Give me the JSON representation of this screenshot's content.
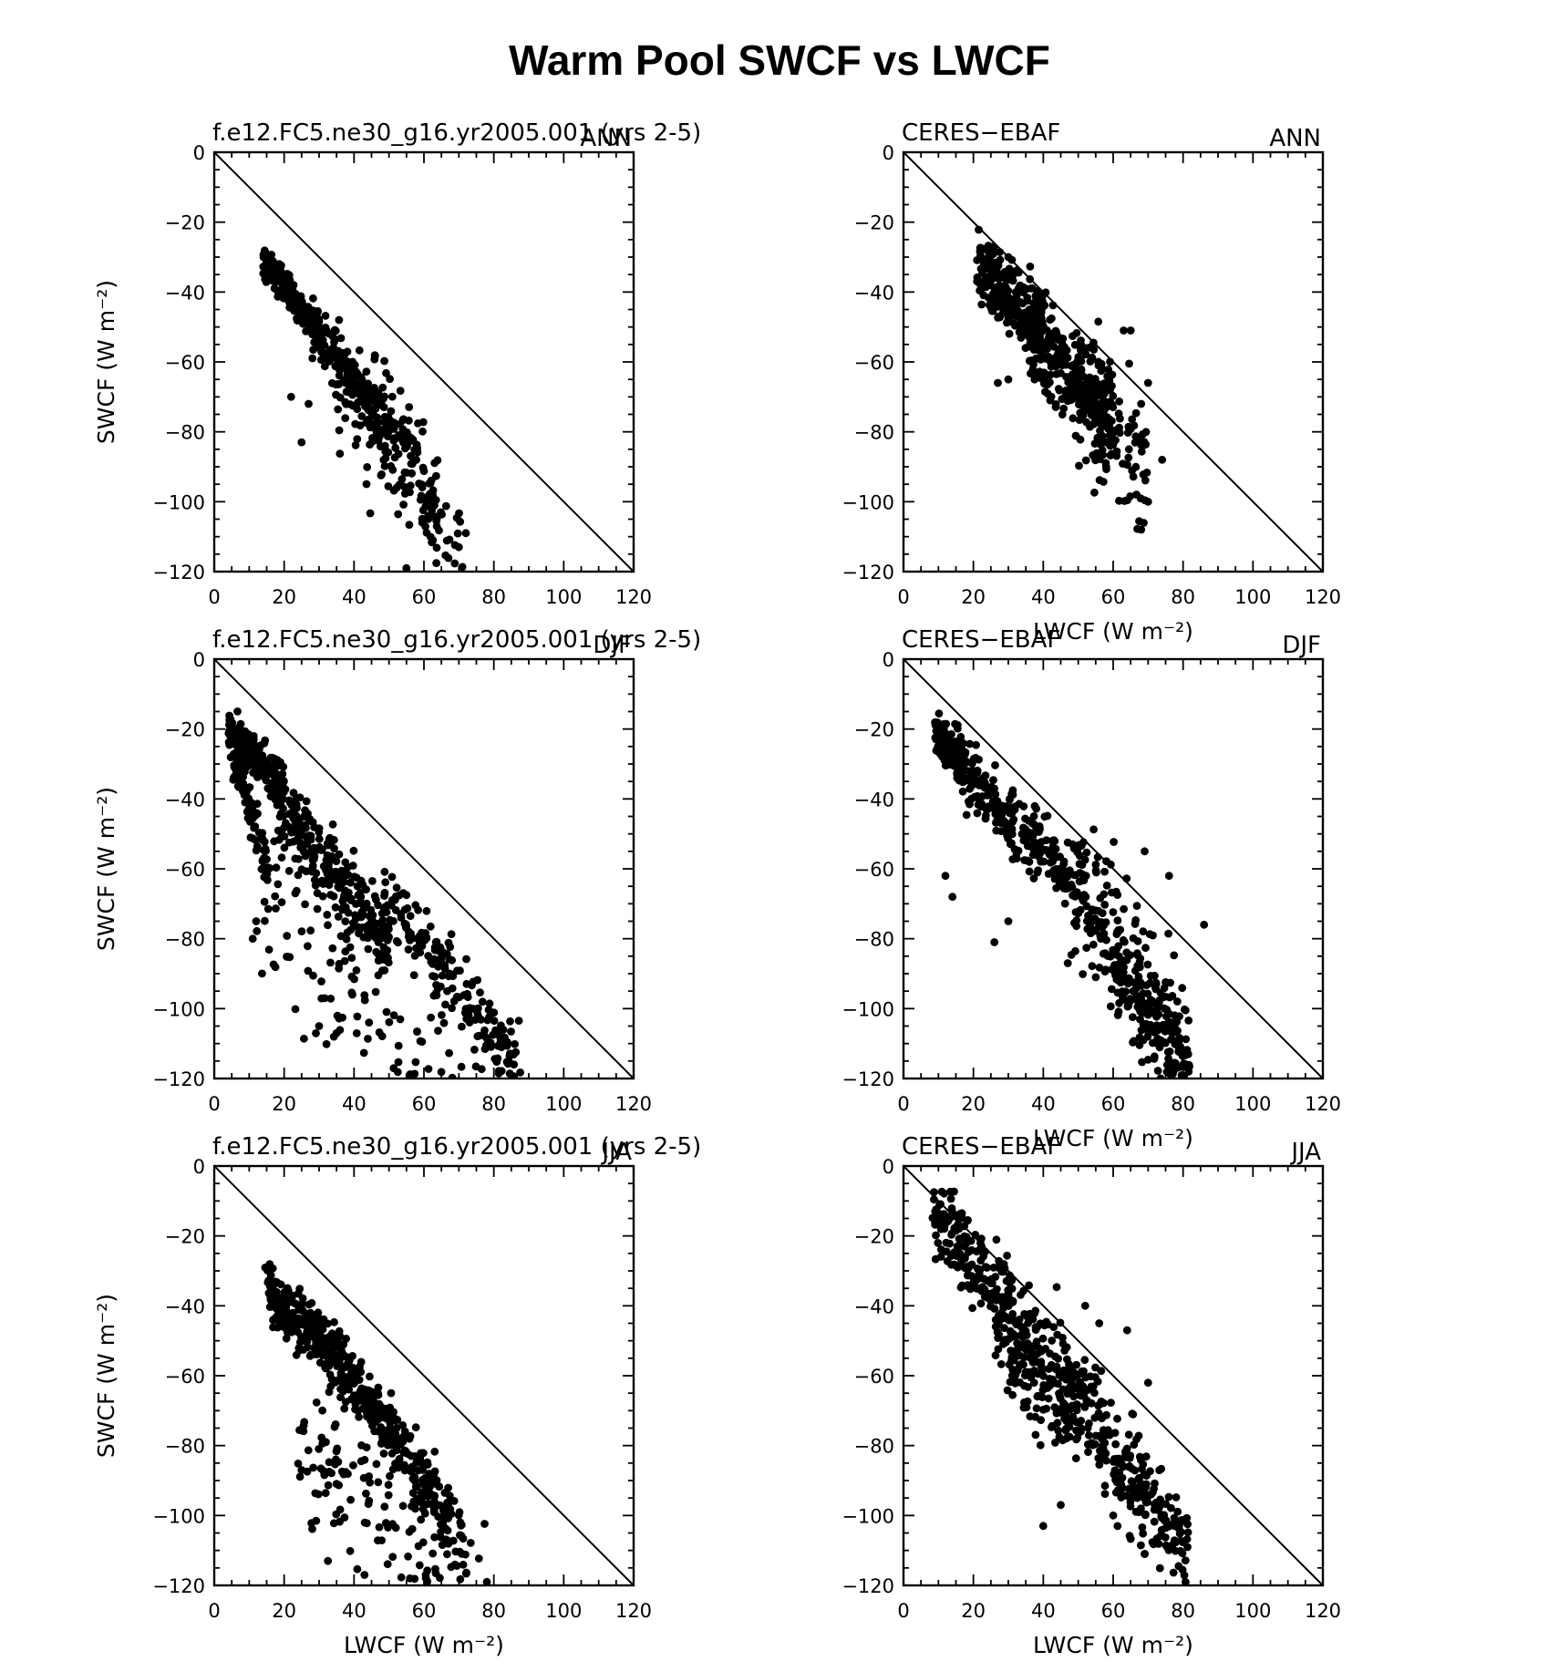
{
  "figure": {
    "title": "Warm Pool SWCF vs LWCF"
  },
  "chart_data": [
    {
      "type": "scatter",
      "run_label": "f.e12.FC5.ne30_g16.yr2005.001 (yrs 2-5)",
      "season": "ANN",
      "xlabel": "",
      "ylabel": "SWCF (W m⁻²)",
      "xlim": [
        0,
        120
      ],
      "ylim": [
        -120,
        0
      ],
      "x_ticks": [
        "0",
        "20",
        "40",
        "60",
        "80",
        "100",
        "120"
      ],
      "y_ticks": [
        "0",
        "−20",
        "−40",
        "−60",
        "−80",
        "−100",
        "−120"
      ],
      "reference_line": "y = -x",
      "point_cloud": [
        {
          "x": [
            14,
            30
          ],
          "slope": -1.25,
          "intercept": -13.5,
          "spread": 2.2,
          "n": 240
        },
        {
          "x": [
            28,
            50
          ],
          "slope": -1.4,
          "intercept": -10,
          "spread": 4.5,
          "n": 170
        },
        {
          "x": [
            44,
            64
          ],
          "slope": -1.5,
          "intercept": -4,
          "spread": 7,
          "n": 110
        },
        {
          "x": [
            34,
            72
          ],
          "slope": -1.35,
          "intercept": -22,
          "spread": 10,
          "n": 70
        }
      ],
      "outliers": [
        {
          "x": 25,
          "y": -83
        },
        {
          "x": 27,
          "y": -72
        },
        {
          "x": 22,
          "y": -70
        },
        {
          "x": 72,
          "y": -109
        },
        {
          "x": 55,
          "y": -119
        },
        {
          "x": 70,
          "y": -113
        }
      ]
    },
    {
      "type": "scatter",
      "run_label": "CERES−EBAF",
      "season": "ANN",
      "xlabel": "LWCF (W m⁻²)",
      "ylabel": "",
      "xlim": [
        0,
        120
      ],
      "ylim": [
        -120,
        0
      ],
      "x_ticks": [
        "0",
        "20",
        "40",
        "60",
        "80",
        "100",
        "120"
      ],
      "y_ticks": [
        "0",
        "−20",
        "−40",
        "−60",
        "−80",
        "−100",
        "−120"
      ],
      "reference_line": "y = -x",
      "point_cloud": [
        {
          "x": [
            21,
            40
          ],
          "slope": -0.9,
          "intercept": -14,
          "spread": 4.5,
          "n": 260
        },
        {
          "x": [
            36,
            60
          ],
          "slope": -1.05,
          "intercept": -13,
          "spread": 8,
          "n": 260
        },
        {
          "x": [
            50,
            70
          ],
          "slope": -1.2,
          "intercept": -8,
          "spread": 9,
          "n": 110
        }
      ],
      "outliers": [
        {
          "x": 30,
          "y": -30
        },
        {
          "x": 68,
          "y": -108
        },
        {
          "x": 70,
          "y": -100
        },
        {
          "x": 74,
          "y": -88
        },
        {
          "x": 70,
          "y": -66
        },
        {
          "x": 68,
          "y": -72
        },
        {
          "x": 63,
          "y": -51
        },
        {
          "x": 65,
          "y": -51
        },
        {
          "x": 38,
          "y": -42
        },
        {
          "x": 27,
          "y": -66
        },
        {
          "x": 30,
          "y": -65
        }
      ]
    },
    {
      "type": "scatter",
      "run_label": "f.e12.FC5.ne30_g16.yr2005.001 (yrs 2-5)",
      "season": "DJF",
      "xlabel": "",
      "ylabel": "SWCF (W m⁻²)",
      "xlim": [
        0,
        120
      ],
      "ylim": [
        -120,
        0
      ],
      "x_ticks": [
        "0",
        "20",
        "40",
        "60",
        "80",
        "100",
        "120"
      ],
      "y_ticks": [
        "0",
        "−20",
        "−40",
        "−60",
        "−80",
        "−100",
        "−120"
      ],
      "reference_line": "y = -x",
      "point_cloud": [
        {
          "x": [
            4,
            20
          ],
          "slope": -1.0,
          "intercept": -16,
          "spread": 3,
          "n": 170
        },
        {
          "x": [
            4,
            16
          ],
          "slope": -3.2,
          "intercept": -10,
          "spread": 4,
          "n": 90
        },
        {
          "x": [
            18,
            50
          ],
          "slope": -1.28,
          "intercept": -18,
          "spread": 5,
          "n": 260
        },
        {
          "x": [
            48,
            88
          ],
          "slope": -1.3,
          "intercept": -4,
          "spread": 6,
          "n": 190
        },
        {
          "x": [
            12,
            72
          ],
          "slope": -1.0,
          "intercept": -55,
          "spread": 13,
          "n": 130
        }
      ],
      "outliers": [
        {
          "x": 35,
          "y": -107
        },
        {
          "x": 30,
          "y": -105
        },
        {
          "x": 12,
          "y": -75
        },
        {
          "x": 11,
          "y": -80
        }
      ]
    },
    {
      "type": "scatter",
      "run_label": "CERES−EBAF",
      "season": "DJF",
      "xlabel": "LWCF (W m⁻²)",
      "ylabel": "",
      "xlim": [
        0,
        120
      ],
      "ylim": [
        -120,
        0
      ],
      "x_ticks": [
        "0",
        "20",
        "40",
        "60",
        "80",
        "100",
        "120"
      ],
      "y_ticks": [
        "0",
        "−20",
        "−40",
        "−60",
        "−80",
        "−100",
        "−120"
      ],
      "reference_line": "y = -x",
      "point_cloud": [
        {
          "x": [
            9,
            18
          ],
          "slope": -1.0,
          "intercept": -12,
          "spread": 3,
          "n": 110
        },
        {
          "x": [
            15,
            48
          ],
          "slope": -1.0,
          "intercept": -15,
          "spread": 5,
          "n": 230
        },
        {
          "x": [
            48,
            82
          ],
          "slope": -1.5,
          "intercept": 8,
          "spread": 10,
          "n": 270
        },
        {
          "x": [
            60,
            80
          ],
          "slope": -1.3,
          "intercept": -10,
          "spread": 6,
          "n": 90
        }
      ],
      "outliers": [
        {
          "x": 12,
          "y": -62
        },
        {
          "x": 14,
          "y": -68
        },
        {
          "x": 26,
          "y": -81
        },
        {
          "x": 30,
          "y": -75
        },
        {
          "x": 47,
          "y": -87
        },
        {
          "x": 36,
          "y": -58
        },
        {
          "x": 86,
          "y": -76
        },
        {
          "x": 80,
          "y": -120
        },
        {
          "x": 76,
          "y": -62
        },
        {
          "x": 69,
          "y": -55
        }
      ]
    },
    {
      "type": "scatter",
      "run_label": "f.e12.FC5.ne30_g16.yr2005.001 (yrs 2-5)",
      "season": "JJA",
      "xlabel": "LWCF (W m⁻²)",
      "ylabel": "SWCF (W m⁻²)",
      "xlim": [
        0,
        120
      ],
      "ylim": [
        -120,
        0
      ],
      "x_ticks": [
        "0",
        "20",
        "40",
        "60",
        "80",
        "100",
        "120"
      ],
      "y_ticks": [
        "0",
        "−20",
        "−40",
        "−60",
        "−80",
        "−100",
        "−120"
      ],
      "reference_line": "y = -x",
      "point_cloud": [
        {
          "x": [
            14,
            30
          ],
          "slope": -0.95,
          "intercept": -21,
          "spread": 4,
          "n": 150
        },
        {
          "x": [
            28,
            52
          ],
          "slope": -1.3,
          "intercept": -10,
          "spread": 4,
          "n": 230
        },
        {
          "x": [
            48,
            72
          ],
          "slope": -1.4,
          "intercept": -6,
          "spread": 6,
          "n": 140
        },
        {
          "x": [
            24,
            78
          ],
          "slope": -1.0,
          "intercept": -50,
          "spread": 11,
          "n": 150
        }
      ],
      "outliers": [
        {
          "x": 43,
          "y": -117
        },
        {
          "x": 56,
          "y": -118
        },
        {
          "x": 78,
          "y": -119
        },
        {
          "x": 25,
          "y": -87
        }
      ]
    },
    {
      "type": "scatter",
      "run_label": "CERES−EBAF",
      "season": "JJA",
      "xlabel": "LWCF (W m⁻²)",
      "ylabel": "",
      "xlim": [
        0,
        120
      ],
      "ylim": [
        -120,
        0
      ],
      "x_ticks": [
        "0",
        "20",
        "40",
        "60",
        "80",
        "100",
        "120"
      ],
      "y_ticks": [
        "0",
        "−20",
        "−40",
        "−60",
        "−80",
        "−100",
        "−120"
      ],
      "reference_line": "y = -x",
      "point_cloud": [
        {
          "x": [
            8,
            26
          ],
          "slope": -1.5,
          "intercept": 2,
          "spread": 6,
          "n": 150
        },
        {
          "x": [
            26,
            50
          ],
          "slope": -1.1,
          "intercept": -14,
          "spread": 9,
          "n": 260
        },
        {
          "x": [
            50,
            82
          ],
          "slope": -1.5,
          "intercept": 9,
          "spread": 8,
          "n": 240
        }
      ],
      "outliers": [
        {
          "x": 40,
          "y": -103
        },
        {
          "x": 45,
          "y": -97
        },
        {
          "x": 60,
          "y": -100
        },
        {
          "x": 69,
          "y": -111
        },
        {
          "x": 64,
          "y": -47
        },
        {
          "x": 70,
          "y": -62
        },
        {
          "x": 52,
          "y": -40
        },
        {
          "x": 56,
          "y": -45
        }
      ]
    }
  ]
}
